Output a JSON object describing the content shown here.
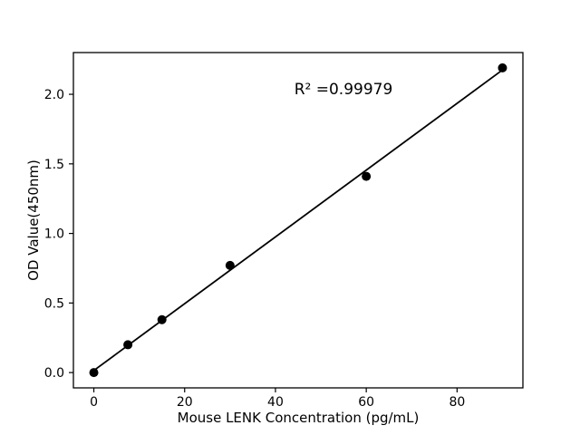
{
  "figure": {
    "background": "#ffffff",
    "foreground": "#000000"
  },
  "chart_data": {
    "type": "scatter",
    "title": "",
    "xlabel": "Mouse LENK Concentration (pg/mL)",
    "ylabel": "OD Value(450nm)",
    "annotation": "R² =0.99979",
    "annotation_position": {
      "x": 55,
      "y": 2.04
    },
    "points": {
      "x": [
        0,
        7.5,
        15,
        30,
        60,
        90
      ],
      "y": [
        0.0,
        0.2,
        0.38,
        0.77,
        1.41,
        2.19
      ]
    },
    "trendline": {
      "x": [
        0,
        90
      ],
      "y": [
        0.015,
        2.175
      ],
      "r_squared": 0.99979
    },
    "xlim": [
      -4.5,
      94.5
    ],
    "ylim": [
      -0.11,
      2.3
    ],
    "x_ticks": [
      0,
      20,
      40,
      60,
      80
    ],
    "x_tick_labels": [
      "0",
      "20",
      "40",
      "60",
      "80"
    ],
    "y_ticks": [
      0.0,
      0.5,
      1.0,
      1.5,
      2.0
    ],
    "y_tick_labels": [
      "0.0",
      "0.5",
      "1.0",
      "1.5",
      "2.0"
    ],
    "marker_color": "#000000",
    "line_color": "#000000",
    "grid": false,
    "legend": "none"
  }
}
